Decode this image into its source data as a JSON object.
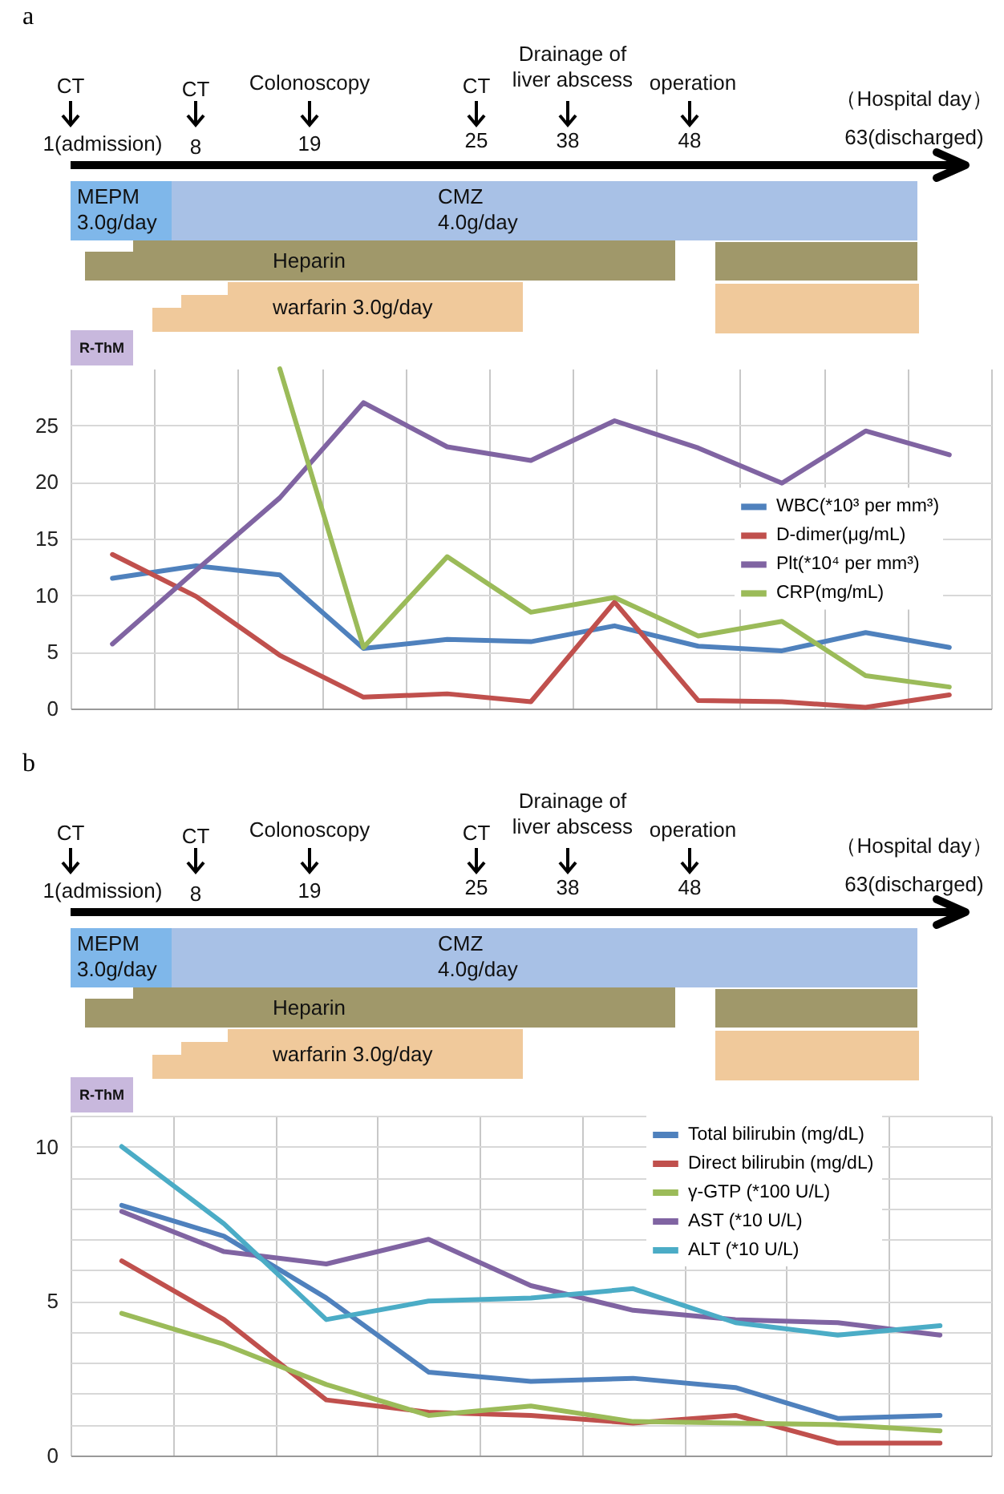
{
  "chart_data": [
    {
      "type": "line",
      "title": "a",
      "annotations": [
        "CT",
        "1(admission)",
        "CT",
        "8",
        "Colonoscopy",
        "19",
        "CT",
        "25",
        "Drainage of liver abscess",
        "38",
        "operation",
        "48",
        "（Hospital day）",
        "63(discharged)",
        "MEPM 3.0g/day",
        "CMZ 4.0g/day",
        "Heparin",
        "warfarin  3.0g/day",
        "R-ThM"
      ],
      "categories": [
        null,
        null,
        null,
        null,
        null,
        null,
        null,
        null,
        null,
        null,
        null
      ],
      "series": [
        {
          "name": "WBC(*10³ per mm³)",
          "color": "#4f81bd",
          "values": [
            11.5,
            12.6,
            11.8,
            5.3,
            6.1,
            5.9,
            7.3,
            5.5,
            5.1,
            6.7,
            5.4
          ]
        },
        {
          "name": "D-dimer(μg/mL)",
          "color": "#c0504d",
          "values": [
            13.6,
            9.9,
            4.7,
            1.0,
            1.3,
            0.6,
            9.4,
            0.7,
            0.6,
            0.1,
            1.2
          ]
        },
        {
          "name": "Plt(*10⁴ per mm³)",
          "color": "#8064a2",
          "values": [
            5.7,
            12.2,
            18.6,
            27.0,
            23.1,
            21.9,
            25.4,
            23.0,
            19.9,
            24.5,
            22.4
          ]
        },
        {
          "name": "CRP(mg/mL)",
          "color": "#9bbb59",
          "values": [
            null,
            null,
            30,
            5.4,
            13.4,
            8.5,
            9.8,
            6.4,
            7.7,
            2.9,
            1.9
          ]
        }
      ],
      "ylim": [
        0,
        30
      ],
      "yticks": [
        0,
        5,
        10,
        15,
        20,
        25
      ],
      "grid": true,
      "legend": "right",
      "tick_labels": "y"
    },
    {
      "type": "line",
      "title": "b",
      "annotations": [
        "CT",
        "1(admission)",
        "CT",
        "8",
        "Colonoscopy",
        "19",
        "CT",
        "25",
        "Drainage of liver abscess",
        "38",
        "operation",
        "48",
        "（Hospital day）",
        "63(discharged)",
        "MEPM 3.0g/day",
        "CMZ 4.0g/day",
        "Heparin",
        "warfarin  3.0g/day",
        "R-ThM"
      ],
      "categories": [
        null,
        null,
        null,
        null,
        null,
        null,
        null,
        null,
        null
      ],
      "series": [
        {
          "name": "Total bilirubin (mg/dL)",
          "color": "#4f81bd",
          "values": [
            8.1,
            7.1,
            5.1,
            2.7,
            2.4,
            2.5,
            2.2,
            1.2,
            1.3
          ]
        },
        {
          "name": "Direct bilirubin  (mg/dL)",
          "color": "#c0504d",
          "values": [
            6.3,
            4.4,
            1.8,
            1.4,
            1.3,
            1.05,
            1.3,
            0.4,
            0.4
          ]
        },
        {
          "name": "γ-GTP (*100 U/L)",
          "color": "#9bbb59",
          "values": [
            4.6,
            3.6,
            2.3,
            1.3,
            1.6,
            1.1,
            1.05,
            1.0,
            0.8
          ]
        },
        {
          "name": "AST (*10 U/L)",
          "color": "#8064a2",
          "values": [
            7.9,
            6.6,
            6.2,
            7.0,
            5.5,
            4.7,
            4.4,
            4.3,
            3.9
          ]
        },
        {
          "name": "ALT (*10 U/L)",
          "color": "#4bacc6",
          "values": [
            10.0,
            7.5,
            4.4,
            5.0,
            5.1,
            5.4,
            4.3,
            3.9,
            4.2
          ]
        }
      ],
      "ylim": [
        0,
        11
      ],
      "yticks": [
        0,
        {
          "value": 1,
          "label": null
        },
        {
          "value": 2,
          "label": null
        },
        {
          "value": 3,
          "label": null
        },
        {
          "value": 4,
          "label": null
        },
        5,
        {
          "value": 6,
          "label": null
        },
        {
          "value": 7,
          "label": null
        },
        {
          "value": 8,
          "label": null
        },
        {
          "value": 9,
          "label": null
        },
        10,
        {
          "value": 11,
          "label": null
        }
      ],
      "grid": true,
      "legend": "top right",
      "tick_labels": "y"
    }
  ]
}
